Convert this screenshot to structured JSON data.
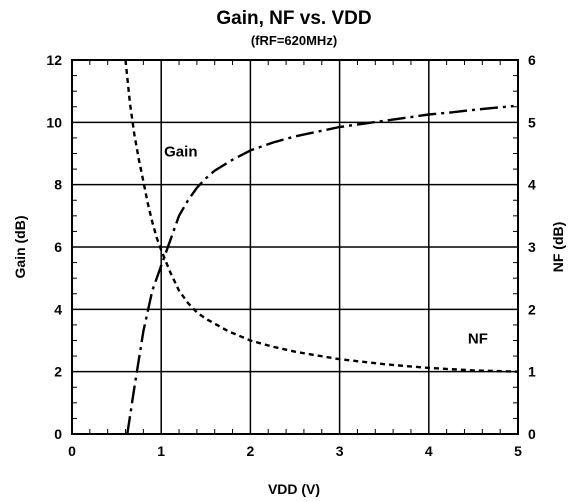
{
  "chart_data": {
    "type": "line",
    "title": "Gain, NF vs. VDD",
    "subtitle": "(fRF=620MHz)",
    "xlabel": "VDD (V)",
    "ylabel": "Gain (dB)",
    "y2label": "NF (dB)",
    "xlim": [
      0,
      5
    ],
    "ylim": [
      0,
      12
    ],
    "y2lim": [
      0,
      6
    ],
    "xticks": [
      "0",
      "1",
      "2",
      "3",
      "4",
      "5"
    ],
    "yticks": [
      "0",
      "2",
      "4",
      "6",
      "8",
      "10",
      "12"
    ],
    "y2ticks": [
      "0",
      "1",
      "2",
      "3",
      "4",
      "5",
      "6"
    ],
    "grid": true,
    "series": [
      {
        "name": "Gain",
        "axis": "left",
        "line_style": "long-dash-dot",
        "x": [
          0.62,
          0.7,
          0.8,
          0.9,
          1.0,
          1.1,
          1.2,
          1.3,
          1.4,
          1.5,
          1.6,
          1.8,
          2.0,
          2.25,
          2.5,
          2.75,
          3.0,
          3.25,
          3.5,
          3.75,
          4.0,
          4.25,
          4.5,
          4.75,
          4.95
        ],
        "y": [
          0.0,
          1.5,
          3.3,
          4.6,
          5.4,
          6.2,
          7.0,
          7.5,
          7.9,
          8.2,
          8.45,
          8.8,
          9.1,
          9.35,
          9.55,
          9.7,
          9.85,
          9.95,
          10.05,
          10.15,
          10.25,
          10.32,
          10.4,
          10.47,
          10.52
        ]
      },
      {
        "name": "NF",
        "axis": "right",
        "line_style": "short-dash",
        "x": [
          0.6,
          0.65,
          0.7,
          0.75,
          0.8,
          0.85,
          0.9,
          0.95,
          1.0,
          1.1,
          1.2,
          1.3,
          1.4,
          1.5,
          1.75,
          2.0,
          2.25,
          2.5,
          2.75,
          3.0,
          3.25,
          3.5,
          3.75,
          4.0,
          4.25,
          4.5,
          4.75,
          5.0
        ],
        "y": [
          6.0,
          5.3,
          4.8,
          4.4,
          4.05,
          3.7,
          3.4,
          3.15,
          2.95,
          2.6,
          2.3,
          2.1,
          1.95,
          1.85,
          1.65,
          1.5,
          1.4,
          1.32,
          1.26,
          1.2,
          1.16,
          1.12,
          1.09,
          1.06,
          1.04,
          1.02,
          1.01,
          1.0
        ]
      }
    ],
    "annotations": [
      {
        "text": "Gain",
        "x": 1.22,
        "y": 8.9,
        "axis": "left"
      },
      {
        "text": "NF",
        "x": 4.55,
        "y": 1.45,
        "axis": "right"
      }
    ]
  }
}
